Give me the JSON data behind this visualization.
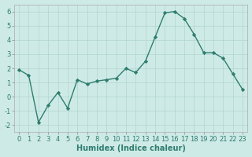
{
  "x": [
    0,
    1,
    2,
    3,
    4,
    5,
    6,
    7,
    8,
    9,
    10,
    11,
    12,
    13,
    14,
    15,
    16,
    17,
    18,
    19,
    20,
    21,
    22,
    23
  ],
  "y": [
    1.9,
    1.5,
    -1.8,
    -0.6,
    0.3,
    -0.8,
    1.2,
    0.9,
    1.1,
    1.2,
    1.3,
    2.0,
    1.7,
    2.5,
    4.2,
    5.9,
    6.0,
    5.5,
    4.4,
    3.1,
    3.1,
    2.7,
    1.6,
    0.5
  ],
  "line_color": "#2e7d6e",
  "marker": "D",
  "marker_size": 2.2,
  "bg_color": "#ceeae7",
  "grid_major_color": "#b0d5d0",
  "grid_minor_color": "#d8eeeb",
  "xlabel": "Humidex (Indice chaleur)",
  "xlim": [
    -0.5,
    23.5
  ],
  "ylim": [
    -2.5,
    6.5
  ],
  "yticks": [
    -2,
    -1,
    0,
    1,
    2,
    3,
    4,
    5,
    6
  ],
  "xticks": [
    0,
    1,
    2,
    3,
    4,
    5,
    6,
    7,
    8,
    9,
    10,
    11,
    12,
    13,
    14,
    15,
    16,
    17,
    18,
    19,
    20,
    21,
    22,
    23
  ],
  "tick_fontsize": 6,
  "xlabel_fontsize": 7,
  "line_width": 1.0
}
